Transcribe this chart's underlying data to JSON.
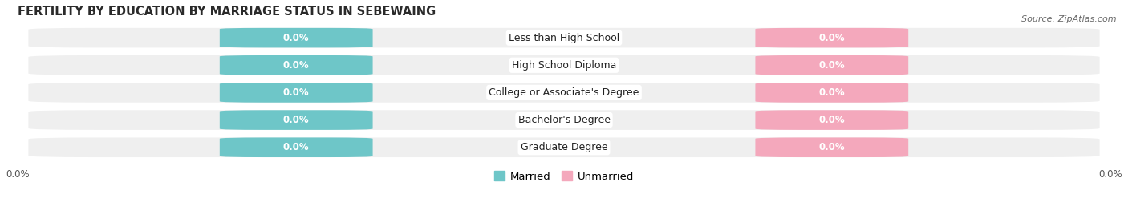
{
  "title": "FERTILITY BY EDUCATION BY MARRIAGE STATUS IN SEBEWAING",
  "source": "Source: ZipAtlas.com",
  "categories": [
    "Less than High School",
    "High School Diploma",
    "College or Associate's Degree",
    "Bachelor's Degree",
    "Graduate Degree"
  ],
  "married_values": [
    0.0,
    0.0,
    0.0,
    0.0,
    0.0
  ],
  "unmarried_values": [
    0.0,
    0.0,
    0.0,
    0.0,
    0.0
  ],
  "married_color": "#6ec6c8",
  "unmarried_color": "#f4a8bc",
  "row_bg_color": "#efefef",
  "title_fontsize": 10.5,
  "source_fontsize": 8,
  "label_fontsize": 8.5,
  "category_fontsize": 9,
  "tick_fontsize": 8.5,
  "figsize": [
    14.06,
    2.68
  ],
  "dpi": 100
}
